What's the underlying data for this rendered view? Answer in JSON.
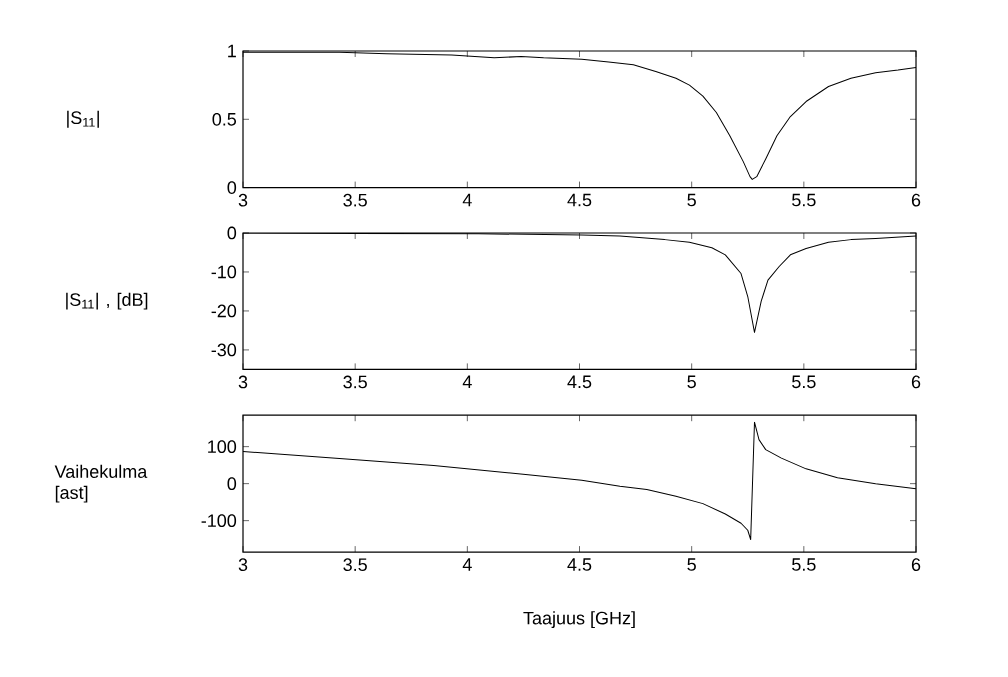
{
  "chart_data": [
    {
      "type": "line",
      "ylabel": "|S$_{11}$|",
      "color": "#000000",
      "xlim": [
        3,
        6
      ],
      "ylim": [
        0,
        1
      ],
      "xticks": [
        3,
        3.5,
        4,
        4.5,
        5,
        5.5,
        6
      ],
      "yticks": [
        0,
        0.5,
        1
      ],
      "x": [
        3.0,
        3.43,
        3.64,
        3.93,
        4.12,
        4.24,
        4.34,
        4.51,
        4.63,
        4.74,
        4.84,
        4.93,
        4.99,
        5.05,
        5.11,
        5.17,
        5.23,
        5.26,
        5.27,
        5.29,
        5.33,
        5.38,
        5.44,
        5.51,
        5.61,
        5.71,
        5.82,
        5.92,
        6.0
      ],
      "values": [
        0.99,
        0.99,
        0.98,
        0.97,
        0.95,
        0.96,
        0.95,
        0.94,
        0.92,
        0.9,
        0.85,
        0.8,
        0.75,
        0.67,
        0.55,
        0.38,
        0.19,
        0.08,
        0.06,
        0.08,
        0.21,
        0.38,
        0.52,
        0.63,
        0.74,
        0.8,
        0.84,
        0.86,
        0.88
      ]
    },
    {
      "type": "line",
      "ylabel": "|S$_{11}$| , [dB]",
      "color": "#000000",
      "xlim": [
        3,
        6
      ],
      "ylim": [
        -35,
        0
      ],
      "xticks": [
        3,
        3.5,
        4,
        4.5,
        5,
        5.5,
        6
      ],
      "yticks": [
        -30,
        -20,
        -10,
        0
      ],
      "x": [
        3.0,
        3.5,
        4.05,
        4.51,
        4.68,
        4.88,
        4.99,
        5.09,
        5.15,
        5.22,
        5.25,
        5.28,
        5.31,
        5.34,
        5.39,
        5.44,
        5.51,
        5.61,
        5.71,
        5.82,
        6.0
      ],
      "values": [
        0,
        -0.1,
        -0.2,
        -0.5,
        -0.8,
        -1.7,
        -2.4,
        -3.8,
        -5.6,
        -10.4,
        -16.3,
        -25.5,
        -17.5,
        -12.1,
        -8.6,
        -5.6,
        -4.0,
        -2.4,
        -1.7,
        -1.4,
        -0.8
      ]
    },
    {
      "type": "line",
      "ylabel": "Vaihekulma [ast]",
      "xlabel": "Taajuus [GHz]",
      "color": "#000000",
      "xlim": [
        3,
        6
      ],
      "ylim": [
        -185,
        185
      ],
      "xticks": [
        3,
        3.5,
        4,
        4.5,
        5,
        5.5,
        6
      ],
      "yticks": [
        -100,
        0,
        100
      ],
      "x": [
        3.0,
        3.43,
        3.85,
        4.26,
        4.51,
        4.68,
        4.8,
        4.93,
        5.05,
        5.15,
        5.22,
        5.25,
        5.263,
        5.28,
        5.3,
        5.33,
        5.4,
        5.51,
        5.65,
        5.82,
        6.0
      ],
      "values": [
        87,
        68,
        49,
        25,
        9,
        -7,
        -16,
        -34,
        -54,
        -82,
        -107,
        -126,
        -151,
        166,
        119,
        92,
        69,
        40,
        16,
        0,
        -14
      ]
    }
  ]
}
